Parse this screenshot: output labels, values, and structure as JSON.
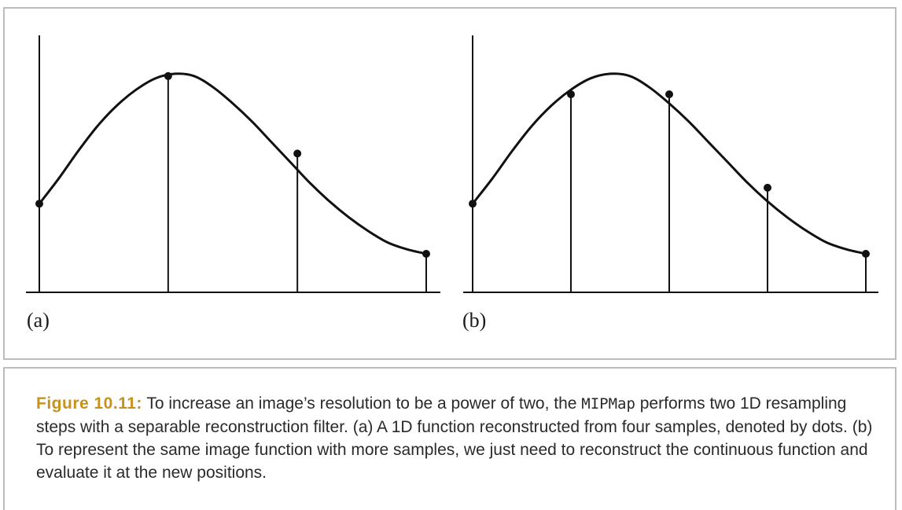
{
  "caption": {
    "figure_number": "Figure 10.11:",
    "text_1": " To increase an image’s resolution to be a power of two, the ",
    "code": "MIPMap",
    "text_2": " performs two 1D resampling steps with a separable reconstruction filter. (a) A 1D function reconstructed from four samples, denoted by dots. (b) To represent the same image function with more samples, we just need to reconstruct the continuous function and evaluate it at the new positions."
  },
  "colors": {
    "figure_number": "#c8921a",
    "border": "#bdbdbd",
    "ink": "#111111"
  },
  "chart_data": [
    {
      "type": "line",
      "panel_label": "(a)",
      "xlim": [
        0,
        1
      ],
      "ylim": [
        0,
        1
      ],
      "curve": {
        "x": [
          0,
          0.05,
          0.1,
          0.15,
          0.2,
          0.25,
          0.3,
          0.35,
          0.4,
          0.45,
          0.5,
          0.55,
          0.6,
          0.65,
          0.7,
          0.75,
          0.8,
          0.85,
          0.9,
          0.95,
          1
        ],
        "y": [
          0.32,
          0.43,
          0.55,
          0.66,
          0.75,
          0.82,
          0.87,
          0.89,
          0.88,
          0.83,
          0.76,
          0.68,
          0.59,
          0.5,
          0.41,
          0.33,
          0.26,
          0.2,
          0.15,
          0.12,
          0.1
        ]
      },
      "samples": {
        "x": [
          0,
          0.333,
          0.667,
          1
        ],
        "y": [
          0.32,
          0.88,
          0.54,
          0.1
        ]
      }
    },
    {
      "type": "line",
      "panel_label": "(b)",
      "xlim": [
        0,
        1
      ],
      "ylim": [
        0,
        1
      ],
      "curve": {
        "x": [
          0,
          0.05,
          0.1,
          0.15,
          0.2,
          0.25,
          0.3,
          0.35,
          0.4,
          0.45,
          0.5,
          0.55,
          0.6,
          0.65,
          0.7,
          0.75,
          0.8,
          0.85,
          0.9,
          0.95,
          1
        ],
        "y": [
          0.32,
          0.43,
          0.55,
          0.66,
          0.75,
          0.82,
          0.87,
          0.89,
          0.88,
          0.83,
          0.76,
          0.68,
          0.59,
          0.5,
          0.41,
          0.33,
          0.26,
          0.2,
          0.15,
          0.12,
          0.1
        ]
      },
      "samples": {
        "x": [
          0,
          0.25,
          0.5,
          0.75,
          1
        ],
        "y": [
          0.32,
          0.8,
          0.8,
          0.39,
          0.1
        ]
      }
    }
  ]
}
